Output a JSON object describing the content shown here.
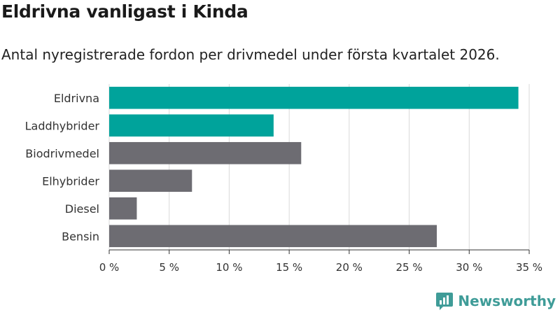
{
  "colors": {
    "highlight": "#00a39b",
    "default": "#6d6c72",
    "grid": "#d9d9d9",
    "brand": "#3f9c98"
  },
  "brand": {
    "name": "Newsworthy",
    "icon": "newsworthy-logo-icon"
  },
  "chart_data": {
    "type": "bar",
    "orientation": "horizontal",
    "title": "Eldrivna vanligast i Kinda",
    "subtitle": "Antal nyregistrerade fordon per drivmedel under första kvartalet 2026.",
    "xlabel": "",
    "ylabel": "",
    "categories": [
      "Eldrivna",
      "Laddhybrider",
      "Biodrivmedel",
      "Elhybrider",
      "Diesel",
      "Bensin"
    ],
    "values": [
      34.1,
      13.7,
      16.0,
      6.9,
      2.3,
      27.3
    ],
    "highlighted": [
      true,
      true,
      false,
      false,
      false,
      false
    ],
    "xlim": [
      0,
      35
    ],
    "xticks": [
      0,
      5,
      10,
      15,
      20,
      25,
      30,
      35
    ],
    "xtick_labels": [
      "0 %",
      "5 %",
      "10 %",
      "15 %",
      "20 %",
      "25 %",
      "30 %",
      "35 %"
    ],
    "grid": true,
    "legend": "none"
  }
}
